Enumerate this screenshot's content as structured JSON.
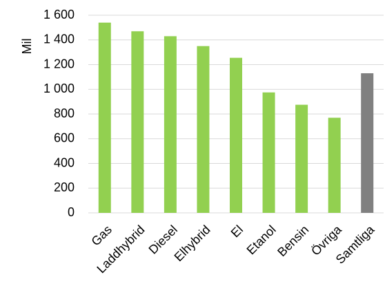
{
  "chart_data": {
    "type": "bar",
    "categories": [
      "Gas",
      "Laddhybrid",
      "Diesel",
      "Elhybrid",
      "El",
      "Etanol",
      "Bensin",
      "Övriga",
      "Samtliga"
    ],
    "values": [
      1540,
      1470,
      1430,
      1350,
      1255,
      975,
      875,
      770,
      1130
    ],
    "ylabel": "Mil",
    "ylim": [
      0,
      1600
    ],
    "yticks": [
      0,
      200,
      400,
      600,
      800,
      1000,
      1200,
      1400,
      1600
    ],
    "ytick_labels": [
      "0",
      "200",
      "400",
      "600",
      "800",
      "1 000",
      "1 200",
      "1 400",
      "1 600"
    ],
    "grid": true,
    "colors": {
      "bar": "#92d050",
      "highlight": "#808080",
      "grid": "#d9d9d9"
    },
    "highlight_category": "Samtliga"
  }
}
